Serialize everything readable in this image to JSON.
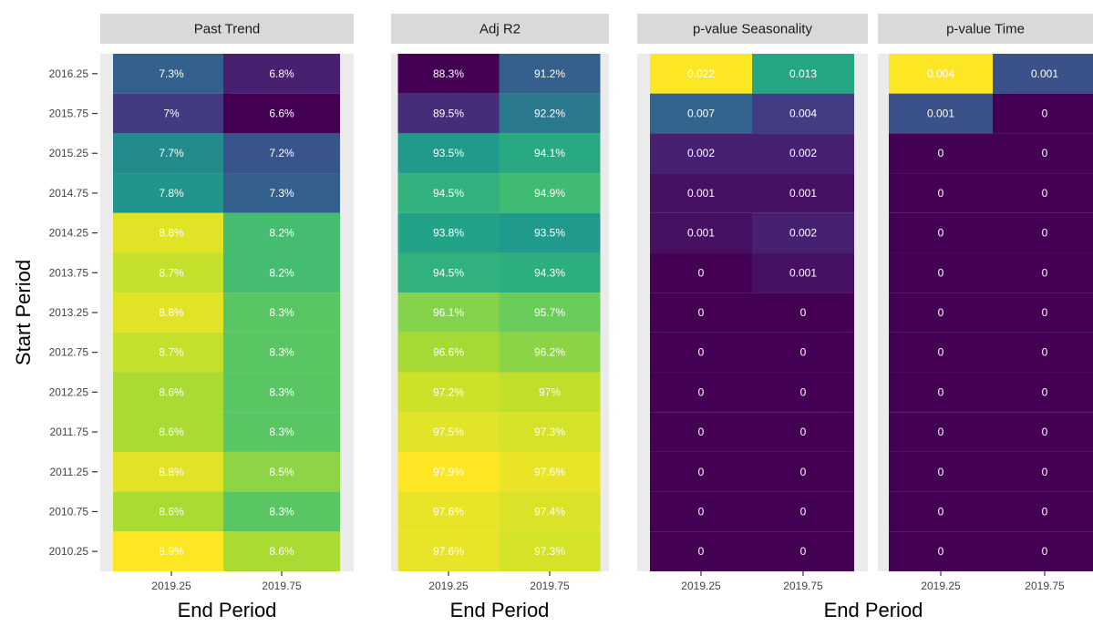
{
  "chart_data": {
    "type": "heatmap",
    "xlabel": "End Period",
    "ylabel": "Start Period",
    "x_categories": [
      "2019.25",
      "2019.75"
    ],
    "y_categories": [
      "2016.25",
      "2015.75",
      "2015.25",
      "2014.75",
      "2014.25",
      "2013.75",
      "2013.25",
      "2012.75",
      "2012.25",
      "2011.75",
      "2011.25",
      "2010.75",
      "2010.25"
    ],
    "color_scale": "viridis",
    "grid": true,
    "legend": "none",
    "panels": [
      {
        "title": "Past Trend",
        "values": [
          [
            7.3,
            6.8
          ],
          [
            7.0,
            6.6
          ],
          [
            7.7,
            7.2
          ],
          [
            7.8,
            7.3
          ],
          [
            8.8,
            8.2
          ],
          [
            8.7,
            8.2
          ],
          [
            8.8,
            8.3
          ],
          [
            8.7,
            8.3
          ],
          [
            8.6,
            8.3
          ],
          [
            8.6,
            8.3
          ],
          [
            8.8,
            8.5
          ],
          [
            8.6,
            8.3
          ],
          [
            8.9,
            8.6
          ]
        ],
        "labels": [
          [
            "7.3%",
            "6.8%"
          ],
          [
            "7%",
            "6.6%"
          ],
          [
            "7.7%",
            "7.2%"
          ],
          [
            "7.8%",
            "7.3%"
          ],
          [
            "8.8%",
            "8.2%"
          ],
          [
            "8.7%",
            "8.2%"
          ],
          [
            "8.8%",
            "8.3%"
          ],
          [
            "8.7%",
            "8.3%"
          ],
          [
            "8.6%",
            "8.3%"
          ],
          [
            "8.6%",
            "8.3%"
          ],
          [
            "8.8%",
            "8.5%"
          ],
          [
            "8.6%",
            "8.3%"
          ],
          [
            "8.9%",
            "8.6%"
          ]
        ]
      },
      {
        "title": "Adj R2",
        "values": [
          [
            88.3,
            91.2
          ],
          [
            89.5,
            92.2
          ],
          [
            93.5,
            94.1
          ],
          [
            94.5,
            94.9
          ],
          [
            93.8,
            93.5
          ],
          [
            94.5,
            94.3
          ],
          [
            96.1,
            95.7
          ],
          [
            96.6,
            96.2
          ],
          [
            97.2,
            97.0
          ],
          [
            97.5,
            97.3
          ],
          [
            97.9,
            97.6
          ],
          [
            97.6,
            97.4
          ],
          [
            97.6,
            97.3
          ]
        ],
        "labels": [
          [
            "88.3%",
            "91.2%"
          ],
          [
            "89.5%",
            "92.2%"
          ],
          [
            "93.5%",
            "94.1%"
          ],
          [
            "94.5%",
            "94.9%"
          ],
          [
            "93.8%",
            "93.5%"
          ],
          [
            "94.5%",
            "94.3%"
          ],
          [
            "96.1%",
            "95.7%"
          ],
          [
            "96.6%",
            "96.2%"
          ],
          [
            "97.2%",
            "97%"
          ],
          [
            "97.5%",
            "97.3%"
          ],
          [
            "97.9%",
            "97.6%"
          ],
          [
            "97.6%",
            "97.4%"
          ],
          [
            "97.6%",
            "97.3%"
          ]
        ]
      },
      {
        "title": "p-value Seasonality",
        "values": [
          [
            0.022,
            0.013
          ],
          [
            0.007,
            0.004
          ],
          [
            0.002,
            0.002
          ],
          [
            0.001,
            0.001
          ],
          [
            0.001,
            0.002
          ],
          [
            0,
            0.001
          ],
          [
            0,
            0
          ],
          [
            0,
            0
          ],
          [
            0,
            0
          ],
          [
            0,
            0
          ],
          [
            0,
            0
          ],
          [
            0,
            0
          ],
          [
            0,
            0
          ]
        ],
        "labels": [
          [
            "0.022",
            "0.013"
          ],
          [
            "0.007",
            "0.004"
          ],
          [
            "0.002",
            "0.002"
          ],
          [
            "0.001",
            "0.001"
          ],
          [
            "0.001",
            "0.002"
          ],
          [
            "0",
            "0.001"
          ],
          [
            "0",
            "0"
          ],
          [
            "0",
            "0"
          ],
          [
            "0",
            "0"
          ],
          [
            "0",
            "0"
          ],
          [
            "0",
            "0"
          ],
          [
            "0",
            "0"
          ],
          [
            "0",
            "0"
          ]
        ]
      },
      {
        "title": "p-value Time",
        "values": [
          [
            0.004,
            0.001
          ],
          [
            0.001,
            0
          ],
          [
            0,
            0
          ],
          [
            0,
            0
          ],
          [
            0,
            0
          ],
          [
            0,
            0
          ],
          [
            0,
            0
          ],
          [
            0,
            0
          ],
          [
            0,
            0
          ],
          [
            0,
            0
          ],
          [
            0,
            0
          ],
          [
            0,
            0
          ],
          [
            0,
            0
          ]
        ],
        "labels": [
          [
            "0.004",
            "0.001"
          ],
          [
            "0.001",
            "0"
          ],
          [
            "0",
            "0"
          ],
          [
            "0",
            "0"
          ],
          [
            "0",
            "0"
          ],
          [
            "0",
            "0"
          ],
          [
            "0",
            "0"
          ],
          [
            "0",
            "0"
          ],
          [
            "0",
            "0"
          ],
          [
            "0",
            "0"
          ],
          [
            "0",
            "0"
          ],
          [
            "0",
            "0"
          ],
          [
            "0",
            "0"
          ]
        ]
      }
    ]
  }
}
